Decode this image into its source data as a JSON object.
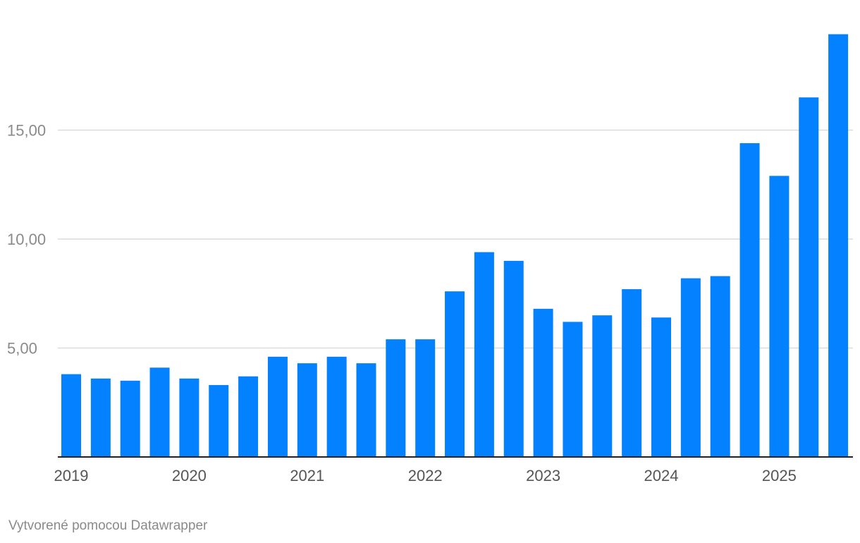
{
  "chart_data": {
    "type": "bar",
    "title": "",
    "xlabel": "",
    "ylabel": "",
    "ylim": [
      0,
      20
    ],
    "y_ticks": [
      {
        "value": 5,
        "label": "5,00"
      },
      {
        "value": 10,
        "label": "10,00"
      },
      {
        "value": 15,
        "label": "15,00"
      }
    ],
    "x_year_labels": [
      "2019",
      "2020",
      "2021",
      "2022",
      "2023",
      "2024",
      "2025"
    ],
    "grid": true,
    "legend": "none",
    "bar_color": "#0381fe",
    "categories": [
      "2019 Q1",
      "2019 Q2",
      "2019 Q3",
      "2019 Q4",
      "2020 Q1",
      "2020 Q2",
      "2020 Q3",
      "2020 Q4",
      "2021 Q1",
      "2021 Q2",
      "2021 Q3",
      "2021 Q4",
      "2022 Q1",
      "2022 Q2",
      "2022 Q3",
      "2022 Q4",
      "2023 Q1",
      "2023 Q2",
      "2023 Q3",
      "2023 Q4",
      "2024 Q1",
      "2024 Q2",
      "2024 Q3",
      "2024 Q4",
      "2025 Q1",
      "2025 Q2",
      "2025 Q3"
    ],
    "values": [
      3.8,
      3.6,
      3.5,
      4.1,
      3.6,
      3.3,
      3.7,
      4.6,
      4.3,
      4.6,
      4.3,
      5.4,
      5.4,
      7.6,
      9.4,
      9.0,
      6.8,
      6.2,
      6.5,
      7.7,
      6.4,
      8.2,
      8.3,
      14.4,
      12.9,
      16.5,
      19.4
    ]
  },
  "footer": {
    "credit": "Vytvorené pomocou Datawrapper"
  }
}
